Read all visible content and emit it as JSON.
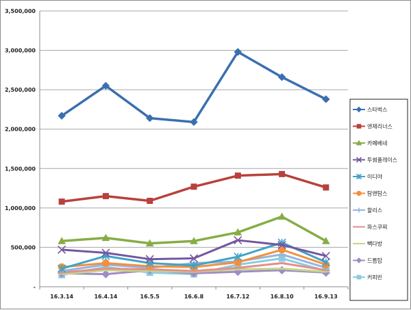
{
  "chart_data": {
    "type": "line",
    "title": "",
    "xlabel": "",
    "ylabel": "",
    "categories": [
      "16.3.14",
      "16.4.14",
      "16.5.5",
      "16.6.8",
      "16.7.12",
      "16.8.10",
      "16.9.13"
    ],
    "ylim": [
      0,
      3500000
    ],
    "yticks": [
      0,
      500000,
      1000000,
      1500000,
      2000000,
      2500000,
      3000000,
      3500000
    ],
    "ytick_labels": [
      "-",
      "500,000",
      "1,000,000",
      "1,500,000",
      "2,000,000",
      "2,500,000",
      "3,000,000",
      "3,500,000"
    ],
    "grid": "horizontal",
    "legend_position": "right",
    "series": [
      {
        "name": "스타벅스",
        "color": "#3a6fb0",
        "marker": "diamond",
        "values": [
          2170000,
          2550000,
          2140000,
          2090000,
          2980000,
          2660000,
          2380000
        ]
      },
      {
        "name": "엔제리너스",
        "color": "#b8413c",
        "marker": "square",
        "values": [
          1080000,
          1150000,
          1090000,
          1270000,
          1410000,
          1430000,
          1260000
        ]
      },
      {
        "name": "카페베네",
        "color": "#86ad45",
        "marker": "triangle",
        "values": [
          580000,
          620000,
          550000,
          580000,
          690000,
          890000,
          580000
        ]
      },
      {
        "name": "투썸플레이스",
        "color": "#7456a0",
        "marker": "x",
        "values": [
          470000,
          430000,
          350000,
          360000,
          590000,
          530000,
          390000
        ]
      },
      {
        "name": "이디야",
        "color": "#41a2c6",
        "marker": "star",
        "values": [
          230000,
          390000,
          300000,
          270000,
          380000,
          560000,
          310000
        ]
      },
      {
        "name": "탐앤탐스",
        "color": "#f2903b",
        "marker": "circle",
        "values": [
          250000,
          300000,
          260000,
          250000,
          310000,
          470000,
          280000
        ]
      },
      {
        "name": "할리스",
        "color": "#93b5e0",
        "marker": "plus",
        "values": [
          200000,
          280000,
          240000,
          300000,
          320000,
          410000,
          240000
        ]
      },
      {
        "name": "파스쿠찌",
        "color": "#e28f8d",
        "marker": "dash",
        "values": [
          180000,
          230000,
          220000,
          200000,
          240000,
          300000,
          210000
        ]
      },
      {
        "name": "빽다방",
        "color": "#c4d68a",
        "marker": "dash",
        "values": [
          160000,
          210000,
          200000,
          190000,
          220000,
          230000,
          190000
        ]
      },
      {
        "name": "드롭탑",
        "color": "#9f8cc6",
        "marker": "diamond",
        "values": [
          170000,
          160000,
          210000,
          170000,
          190000,
          210000,
          180000
        ]
      },
      {
        "name": "커피빈",
        "color": "#8dcbe0",
        "marker": "square",
        "values": [
          150000,
          250000,
          180000,
          160000,
          280000,
          360000,
          200000
        ]
      }
    ]
  }
}
